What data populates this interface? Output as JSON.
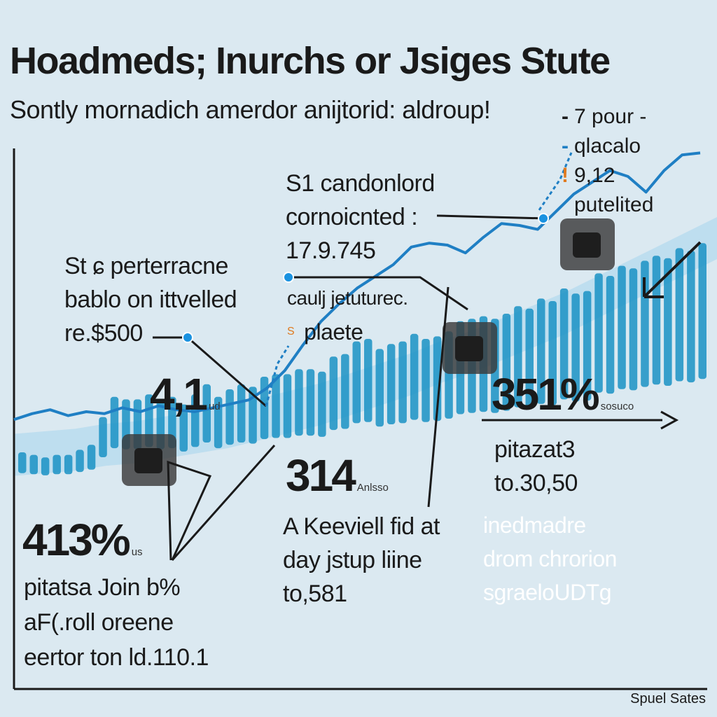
{
  "title": "Hoadmeds; Inurchs or Jsiges Stute",
  "subtitle": "Sontly mornadich amerdor anijtorid: aldroup!",
  "legend": [
    {
      "marker": "-",
      "label": "7 pour -",
      "color": "#1a1a1a"
    },
    {
      "marker": "-",
      "label": "qlacalo",
      "color": "#1f7fc4"
    },
    {
      "marker": "!",
      "label": "9,12",
      "color": "#e07a1f"
    },
    {
      "marker": "",
      "label": "putelited",
      "color": "#1a1a1a"
    }
  ],
  "annotations": {
    "a1": {
      "lines": [
        "S1 candonlord",
        "cornoicnted :",
        "17.9.745"
      ]
    },
    "a2": {
      "lines": [
        "St ɕ perterracne",
        "bablo on ittvelled",
        "re.$500"
      ]
    },
    "a3": {
      "lines": [
        "caulj jetuturec.",
        "plaete"
      ],
      "prefix": "S"
    },
    "a4": {
      "big": "4,1",
      "tiny": "ud"
    },
    "a5": {
      "big": "351%",
      "tiny": "sosuco"
    },
    "a6": {
      "lines": [
        "pitazat3",
        "to.30,50"
      ]
    },
    "a7": {
      "big": "314",
      "tiny": "Anlsso"
    },
    "a8": {
      "lines": [
        "A Keeviell fid at",
        "day jstup liine",
        "to,581"
      ]
    },
    "a9": {
      "big": "413%",
      "tiny": "us"
    },
    "a10": {
      "lines": [
        "pitatsa Join b%",
        "aF(.roll oreene",
        "eertor ton ld.110.1"
      ]
    },
    "a11": {
      "lines": [
        "inedmadre",
        "drom chrorion",
        "sgraeloUDTg"
      ]
    }
  },
  "source": "Spuel Sates",
  "colors": {
    "background": "#dbe9f1",
    "bar": "#1a92c4",
    "line": "#1f7fc4",
    "band": "#b4d9ee",
    "accent": "#e07a1f"
  },
  "chart_data": {
    "type": "bar",
    "grid": false,
    "legend_position": "top-right",
    "bars": [
      1.5,
      1.4,
      1.3,
      1.4,
      1.4,
      1.6,
      1.8,
      2.9,
      3.7,
      3.6,
      3.6,
      3.8,
      3.6,
      3.7,
      3.4,
      3.8,
      4.2,
      3.7,
      4.0,
      4.2,
      4.1,
      4.5,
      4.6,
      4.6,
      4.8,
      4.8,
      4.7,
      5.3,
      5.4,
      5.9,
      6.0,
      5.6,
      5.8,
      5.9,
      6.2,
      6.0,
      6.1,
      6.3,
      6.7,
      6.8,
      6.9,
      6.8,
      7.0,
      7.3,
      7.2,
      7.6,
      7.5,
      8.0,
      7.8,
      7.9,
      8.6,
      8.5,
      8.9,
      8.8,
      9.1,
      9.3,
      9.2,
      9.6,
      9.5,
      9.8
    ],
    "trend_line": [
      3.6,
      3.9,
      4.1,
      3.8,
      4.0,
      3.9,
      4.2,
      4.0,
      4.3,
      4.1,
      4.0,
      4.2,
      4.4,
      4.6,
      5.2,
      6.1,
      7.4,
      8.6,
      9.5,
      10.3,
      10.9,
      11.5,
      12.4,
      12.6,
      12.5,
      12.1,
      12.9,
      13.6,
      13.5,
      13.3,
      14.2,
      15.1,
      15.7,
      16.3,
      16.0,
      15.2,
      16.3,
      17.1,
      17.2
    ],
    "band": [
      1.4,
      1.5,
      1.6,
      1.8,
      1.9,
      2.1,
      2.3,
      2.5,
      2.8,
      3.1,
      3.4,
      3.8,
      4.2,
      4.6,
      5.1,
      5.5,
      6.0,
      6.5,
      7.0,
      7.6,
      8.2,
      8.8,
      9.4,
      10.0
    ],
    "callout_boxes": 3
  }
}
